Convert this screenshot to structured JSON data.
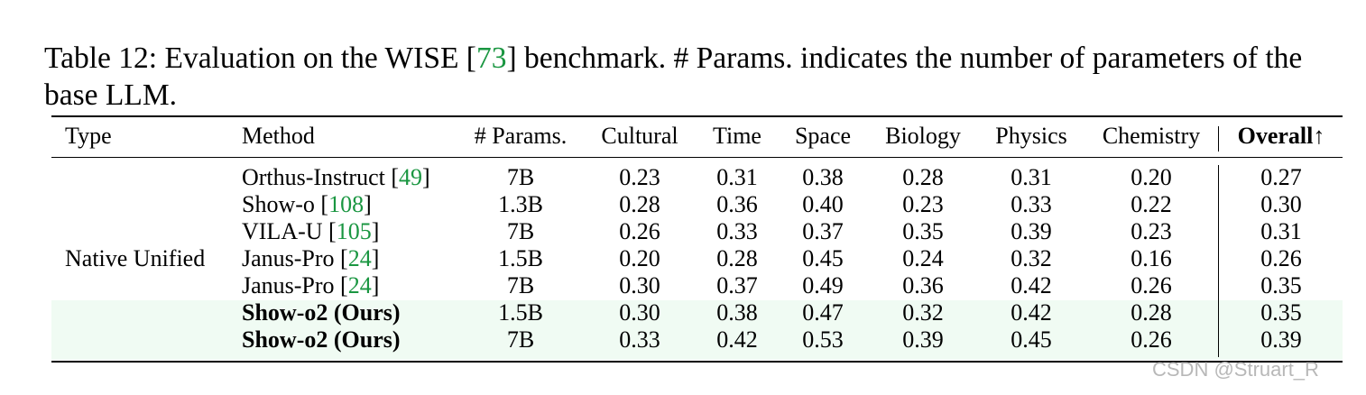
{
  "caption": {
    "prefix": "Table 12: Evaluation on the WISE [",
    "cite": "73",
    "suffix": "] benchmark. # Params. indicates the number of parameters of the base LLM."
  },
  "headers": {
    "type": "Type",
    "method": "Method",
    "params": "# Params.",
    "cultural": "Cultural",
    "time": "Time",
    "space": "Space",
    "biology": "Biology",
    "physics": "Physics",
    "chemistry": "Chemistry",
    "overall": "Overall↑"
  },
  "type_label": "Native Unified",
  "rows": [
    {
      "method": "Orthus-Instruct [",
      "cite": "49",
      "close": "]",
      "params": "7B",
      "cultural": "0.23",
      "time": "0.31",
      "space": "0.38",
      "biology": "0.28",
      "physics": "0.31",
      "chemistry": "0.20",
      "overall": "0.27"
    },
    {
      "method": "Show-o [",
      "cite": "108",
      "close": "]",
      "params": "1.3B",
      "cultural": "0.28",
      "time": "0.36",
      "space": "0.40",
      "biology": "0.23",
      "physics": "0.33",
      "chemistry": "0.22",
      "overall": "0.30"
    },
    {
      "method": "VILA-U [",
      "cite": "105",
      "close": "]",
      "params": "7B",
      "cultural": "0.26",
      "time": "0.33",
      "space": "0.37",
      "biology": "0.35",
      "physics": "0.39",
      "chemistry": "0.23",
      "overall": "0.31"
    },
    {
      "method": "Janus-Pro [",
      "cite": "24",
      "close": "]",
      "params": "1.5B",
      "cultural": "0.20",
      "time": "0.28",
      "space": "0.45",
      "biology": "0.24",
      "physics": "0.32",
      "chemistry": "0.16",
      "overall": "0.26"
    },
    {
      "method": "Janus-Pro [",
      "cite": "24",
      "close": "]",
      "params": "7B",
      "cultural": "0.30",
      "time": "0.37",
      "space": "0.49",
      "biology": "0.36",
      "physics": "0.42",
      "chemistry": "0.26",
      "overall": "0.35"
    },
    {
      "method": "Show-o2 (Ours)",
      "cite": "",
      "close": "",
      "params": "1.5B",
      "cultural": "0.30",
      "time": "0.38",
      "space": "0.47",
      "biology": "0.32",
      "physics": "0.42",
      "chemistry": "0.28",
      "overall": "0.35",
      "bold": true
    },
    {
      "method": "Show-o2 (Ours)",
      "cite": "",
      "close": "",
      "params": "7B",
      "cultural": "0.33",
      "time": "0.42",
      "space": "0.53",
      "biology": "0.39",
      "physics": "0.45",
      "chemistry": "0.26",
      "overall": "0.39",
      "bold": true
    }
  ],
  "colors": {
    "citation": "#1a9641",
    "highlight_row": "#f0fbf3",
    "watermark": "#b8b8b8"
  },
  "watermark": "CSDN @Struart_R"
}
